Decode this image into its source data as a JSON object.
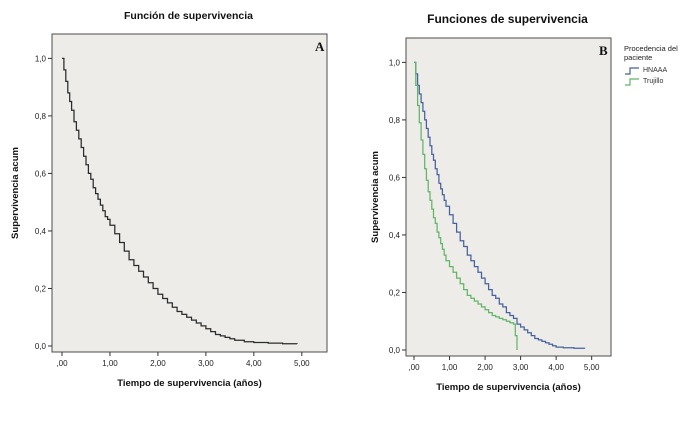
{
  "figure": {
    "background": "#ffffff",
    "plot_bg": "#edecE9",
    "plot_border": "#4d4d4d",
    "tick_color": "#333333",
    "text_color": "#111111"
  },
  "chart_data": [
    {
      "type": "line",
      "subtype": "kaplan-meier-step-survival",
      "panel_label": "A",
      "title": "Función de supervivencia",
      "xlabel": "Tiempo de supervivencia (años)",
      "ylabel": "Supervivencia acum",
      "xlim": [
        0,
        5.15
      ],
      "ylim": [
        0,
        1.05
      ],
      "grid": false,
      "x_ticks": [
        0,
        1,
        2,
        3,
        4,
        5
      ],
      "x_tick_labels": [
        ",00",
        "1,00",
        "2,00",
        "3,00",
        "4,00",
        "5,00"
      ],
      "y_ticks": [
        0,
        0.2,
        0.4,
        0.6,
        0.8,
        1.0
      ],
      "y_tick_labels": [
        "0,0",
        "0,2",
        "0,4",
        "0,6",
        "0,8",
        "1,0"
      ],
      "series": [
        {
          "color": "#2b2b2b",
          "points": [
            [
              0,
              1.0
            ],
            [
              0.04,
              0.96
            ],
            [
              0.08,
              0.92
            ],
            [
              0.12,
              0.88
            ],
            [
              0.16,
              0.85
            ],
            [
              0.2,
              0.82
            ],
            [
              0.25,
              0.78
            ],
            [
              0.3,
              0.75
            ],
            [
              0.35,
              0.72
            ],
            [
              0.4,
              0.69
            ],
            [
              0.45,
              0.66
            ],
            [
              0.5,
              0.63
            ],
            [
              0.55,
              0.6
            ],
            [
              0.6,
              0.58
            ],
            [
              0.65,
              0.55
            ],
            [
              0.7,
              0.53
            ],
            [
              0.75,
              0.51
            ],
            [
              0.8,
              0.49
            ],
            [
              0.85,
              0.47
            ],
            [
              0.9,
              0.45
            ],
            [
              0.95,
              0.44
            ],
            [
              1.0,
              0.42
            ],
            [
              1.1,
              0.39
            ],
            [
              1.2,
              0.36
            ],
            [
              1.3,
              0.33
            ],
            [
              1.4,
              0.3
            ],
            [
              1.5,
              0.28
            ],
            [
              1.6,
              0.26
            ],
            [
              1.7,
              0.24
            ],
            [
              1.8,
              0.22
            ],
            [
              1.9,
              0.2
            ],
            [
              2.0,
              0.18
            ],
            [
              2.1,
              0.165
            ],
            [
              2.2,
              0.15
            ],
            [
              2.3,
              0.135
            ],
            [
              2.4,
              0.12
            ],
            [
              2.5,
              0.11
            ],
            [
              2.6,
              0.1
            ],
            [
              2.7,
              0.09
            ],
            [
              2.8,
              0.08
            ],
            [
              2.9,
              0.07
            ],
            [
              3.0,
              0.06
            ],
            [
              3.1,
              0.05
            ],
            [
              3.2,
              0.04
            ],
            [
              3.3,
              0.035
            ],
            [
              3.4,
              0.03
            ],
            [
              3.5,
              0.025
            ],
            [
              3.6,
              0.02
            ],
            [
              3.8,
              0.015
            ],
            [
              4.0,
              0.012
            ],
            [
              4.3,
              0.01
            ],
            [
              4.6,
              0.008
            ],
            [
              4.9,
              0.007
            ]
          ]
        }
      ]
    },
    {
      "type": "line",
      "subtype": "kaplan-meier-step-survival",
      "panel_label": "B",
      "title": "Funciones de supervivencia",
      "xlabel": "Tiempo de supervivencia (años)",
      "ylabel": "Supervivencia acum",
      "legend_title": "Procedencia del paciente",
      "legend_position": "right",
      "xlim": [
        0,
        5.15
      ],
      "ylim": [
        0,
        1.05
      ],
      "grid": false,
      "x_ticks": [
        0,
        1,
        2,
        3,
        4,
        5
      ],
      "x_tick_labels": [
        ",00",
        "1,00",
        "2,00",
        "3,00",
        "4,00",
        "5,00"
      ],
      "y_ticks": [
        0,
        0.2,
        0.4,
        0.6,
        0.8,
        1.0
      ],
      "y_tick_labels": [
        "0,0",
        "0,2",
        "0,4",
        "0,6",
        "0,8",
        "1,0"
      ],
      "series": [
        {
          "name": "HNAAA",
          "color": "#46629e",
          "points": [
            [
              0,
              1.0
            ],
            [
              0.05,
              0.96
            ],
            [
              0.1,
              0.92
            ],
            [
              0.15,
              0.89
            ],
            [
              0.2,
              0.86
            ],
            [
              0.25,
              0.83
            ],
            [
              0.3,
              0.8
            ],
            [
              0.35,
              0.77
            ],
            [
              0.4,
              0.74
            ],
            [
              0.45,
              0.71
            ],
            [
              0.5,
              0.68
            ],
            [
              0.55,
              0.66
            ],
            [
              0.6,
              0.63
            ],
            [
              0.65,
              0.61
            ],
            [
              0.7,
              0.58
            ],
            [
              0.75,
              0.56
            ],
            [
              0.8,
              0.54
            ],
            [
              0.85,
              0.52
            ],
            [
              0.9,
              0.5
            ],
            [
              1.0,
              0.47
            ],
            [
              1.1,
              0.44
            ],
            [
              1.2,
              0.41
            ],
            [
              1.3,
              0.38
            ],
            [
              1.4,
              0.36
            ],
            [
              1.5,
              0.33
            ],
            [
              1.6,
              0.31
            ],
            [
              1.7,
              0.29
            ],
            [
              1.8,
              0.27
            ],
            [
              1.9,
              0.25
            ],
            [
              2.0,
              0.23
            ],
            [
              2.1,
              0.21
            ],
            [
              2.2,
              0.19
            ],
            [
              2.3,
              0.18
            ],
            [
              2.4,
              0.16
            ],
            [
              2.5,
              0.15
            ],
            [
              2.6,
              0.13
            ],
            [
              2.7,
              0.12
            ],
            [
              2.8,
              0.11
            ],
            [
              2.9,
              0.09
            ],
            [
              3.0,
              0.08
            ],
            [
              3.1,
              0.07
            ],
            [
              3.2,
              0.06
            ],
            [
              3.3,
              0.05
            ],
            [
              3.4,
              0.04
            ],
            [
              3.5,
              0.035
            ],
            [
              3.6,
              0.03
            ],
            [
              3.7,
              0.025
            ],
            [
              3.8,
              0.02
            ],
            [
              3.9,
              0.015
            ],
            [
              4.0,
              0.01
            ],
            [
              4.2,
              0.008
            ],
            [
              4.5,
              0.006
            ],
            [
              4.8,
              0.005
            ]
          ]
        },
        {
          "name": "Trujillo",
          "color": "#62b568",
          "points": [
            [
              0,
              1.0
            ],
            [
              0.05,
              0.92
            ],
            [
              0.1,
              0.85
            ],
            [
              0.15,
              0.79
            ],
            [
              0.2,
              0.73
            ],
            [
              0.25,
              0.68
            ],
            [
              0.3,
              0.63
            ],
            [
              0.35,
              0.59
            ],
            [
              0.4,
              0.55
            ],
            [
              0.45,
              0.52
            ],
            [
              0.5,
              0.49
            ],
            [
              0.55,
              0.46
            ],
            [
              0.6,
              0.44
            ],
            [
              0.65,
              0.41
            ],
            [
              0.7,
              0.39
            ],
            [
              0.75,
              0.37
            ],
            [
              0.8,
              0.35
            ],
            [
              0.85,
              0.33
            ],
            [
              0.9,
              0.31
            ],
            [
              1.0,
              0.29
            ],
            [
              1.1,
              0.27
            ],
            [
              1.2,
              0.25
            ],
            [
              1.3,
              0.23
            ],
            [
              1.4,
              0.21
            ],
            [
              1.5,
              0.19
            ],
            [
              1.6,
              0.18
            ],
            [
              1.7,
              0.17
            ],
            [
              1.8,
              0.16
            ],
            [
              1.9,
              0.15
            ],
            [
              2.0,
              0.14
            ],
            [
              2.1,
              0.13
            ],
            [
              2.2,
              0.12
            ],
            [
              2.3,
              0.115
            ],
            [
              2.4,
              0.11
            ],
            [
              2.5,
              0.105
            ],
            [
              2.6,
              0.1
            ],
            [
              2.7,
              0.095
            ],
            [
              2.8,
              0.09
            ],
            [
              2.85,
              0.05
            ],
            [
              2.9,
              0.0
            ]
          ]
        }
      ]
    }
  ]
}
